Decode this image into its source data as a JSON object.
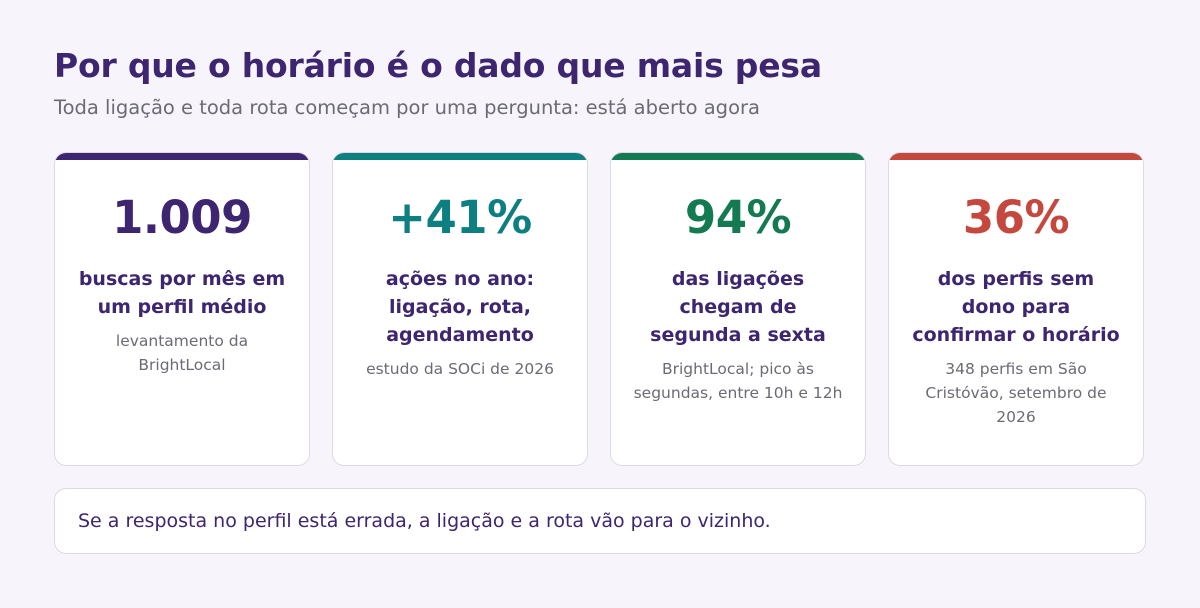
{
  "header": {
    "title": "Por que o horário é o dado que mais pesa",
    "subtitle": "Toda ligação e toda rota começam por uma pergunta: está aberto agora"
  },
  "colors": {
    "purple": "#3d2570",
    "teal": "#0d7f80",
    "green": "#137a52",
    "red": "#c5483f"
  },
  "cards": [
    {
      "value": "1.009",
      "label": "buscas por mês em um perfil médio",
      "source": "levantamento da BrightLocal"
    },
    {
      "value": "+41%",
      "label": "ações no ano: ligação, rota, agendamento",
      "source": "estudo da SOCi de 2026"
    },
    {
      "value": "94%",
      "label": "das ligações chegam de segunda a sexta",
      "source": "BrightLocal; pico às segundas, entre 10h e 12h"
    },
    {
      "value": "36%",
      "label": "dos perfis sem dono para confirmar o horário",
      "source": "348 perfis em São Cristóvão, setembro de 2026"
    }
  ],
  "footer": {
    "text": "Se a resposta no perfil está errada, a ligação e a rota vão para o vizinho."
  }
}
